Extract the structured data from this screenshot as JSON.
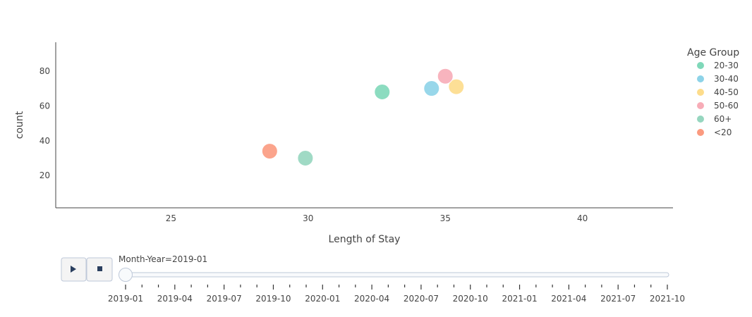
{
  "chart_data": {
    "type": "scatter",
    "xlabel": "Length of Stay",
    "ylabel": "count",
    "xlim": [
      20.8,
      43.3
    ],
    "ylim": [
      1.5,
      96.5
    ],
    "xticks": [
      25,
      30,
      35,
      40
    ],
    "yticks": [
      20,
      40,
      60,
      80
    ],
    "grid": false,
    "legend_title": "Age Group",
    "legend_position": "right",
    "series": [
      {
        "name": "20-30",
        "color": "#7fd8b9",
        "x": [
          32.7
        ],
        "y": [
          68
        ]
      },
      {
        "name": "30-40",
        "color": "#8dd3e8",
        "x": [
          34.5
        ],
        "y": [
          70
        ]
      },
      {
        "name": "40-50",
        "color": "#fddc8b",
        "x": [
          35.4
        ],
        "y": [
          71
        ]
      },
      {
        "name": "50-60",
        "color": "#f7acb7",
        "x": [
          35.0
        ],
        "y": [
          77
        ]
      },
      {
        "name": "60+",
        "color": "#96d6bf",
        "x": [
          29.9
        ],
        "y": [
          30
        ]
      },
      {
        "name": "<20",
        "color": "#fb9a7f",
        "x": [
          28.6
        ],
        "y": [
          34
        ]
      }
    ]
  },
  "slider": {
    "current_label": "Month-Year=2019-01",
    "current_index": 0,
    "tick_labels": [
      "2019-01",
      "2019-04",
      "2019-07",
      "2019-10",
      "2020-01",
      "2020-04",
      "2020-07",
      "2020-10",
      "2021-01",
      "2021-04",
      "2021-07",
      "2021-10"
    ],
    "steps_count": 34
  },
  "controls": {
    "play_icon": "play-icon",
    "stop_icon": "stop-icon"
  }
}
